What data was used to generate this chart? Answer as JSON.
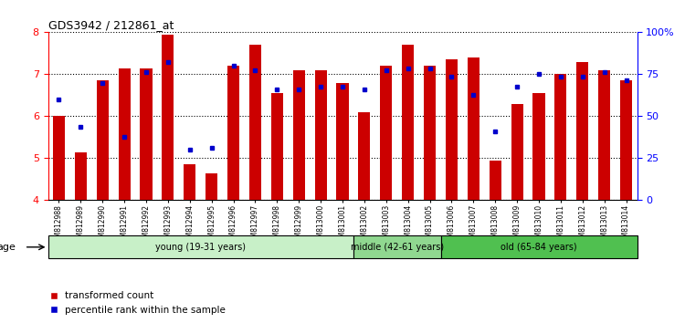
{
  "title": "GDS3942 / 212861_at",
  "samples": [
    "GSM812988",
    "GSM812989",
    "GSM812990",
    "GSM812991",
    "GSM812992",
    "GSM812993",
    "GSM812994",
    "GSM812995",
    "GSM812996",
    "GSM812997",
    "GSM812998",
    "GSM812999",
    "GSM813000",
    "GSM813001",
    "GSM813002",
    "GSM813003",
    "GSM813004",
    "GSM813005",
    "GSM813006",
    "GSM813007",
    "GSM813008",
    "GSM813009",
    "GSM813010",
    "GSM813011",
    "GSM813012",
    "GSM813013",
    "GSM813014"
  ],
  "bar_values": [
    6.0,
    5.15,
    6.85,
    7.15,
    7.15,
    7.95,
    4.85,
    4.65,
    7.2,
    7.7,
    6.55,
    7.1,
    7.1,
    6.8,
    6.1,
    7.2,
    7.7,
    7.2,
    7.35,
    7.4,
    4.95,
    6.3,
    6.55,
    7.0,
    7.3,
    7.1,
    6.85
  ],
  "percentile_values": [
    6.4,
    5.75,
    6.8,
    5.5,
    7.05,
    7.3,
    5.2,
    5.25,
    7.2,
    7.1,
    6.65,
    6.65,
    6.7,
    6.7,
    6.65,
    7.1,
    7.15,
    7.15,
    6.95,
    6.5,
    5.65,
    6.7,
    7.0,
    6.95,
    6.95,
    7.05,
    6.85
  ],
  "groups": [
    {
      "label": "young (19-31 years)",
      "start": 0,
      "end": 14,
      "color": "#c8f0c8"
    },
    {
      "label": "middle (42-61 years)",
      "start": 14,
      "end": 18,
      "color": "#90d890"
    },
    {
      "label": "old (65-84 years)",
      "start": 18,
      "end": 27,
      "color": "#50c050"
    }
  ],
  "ylim": [
    4.0,
    8.0
  ],
  "yticks_left": [
    4,
    5,
    6,
    7,
    8
  ],
  "yticks_right": [
    0,
    25,
    50,
    75,
    100
  ],
  "bar_color": "#cc0000",
  "dot_color": "#0000cc",
  "background_color": "#ffffff",
  "legend_items": [
    "transformed count",
    "percentile rank within the sample"
  ],
  "age_label": "age"
}
